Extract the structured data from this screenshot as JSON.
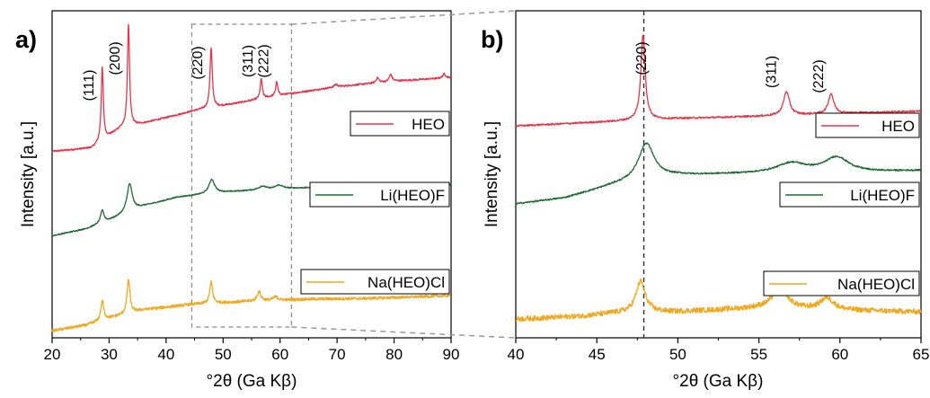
{
  "chart_data": [
    {
      "panel_label": "a)",
      "type": "line",
      "xlabel": "°2θ (Ga Kβ)",
      "ylabel": "Intensity [a.u.]",
      "xlim": [
        20,
        90
      ],
      "xticks": [
        20,
        30,
        40,
        50,
        60,
        70,
        80,
        90
      ],
      "zoom_box": [
        44.5,
        62
      ],
      "peak_labels": [
        {
          "text": "(111)",
          "x": 28.8
        },
        {
          "text": "(200)",
          "x": 33.4
        },
        {
          "text": "(220)",
          "x": 47.9
        },
        {
          "text": "(311)",
          "x": 56.7
        },
        {
          "text": "(222)",
          "x": 59.5
        }
      ],
      "series": [
        {
          "name": "HEO",
          "color": "#e8344a",
          "offset": 2.55,
          "noise": 0.012,
          "baseline": [
            [
              20,
              0.0
            ],
            [
              27,
              0.05
            ],
            [
              32,
              0.33
            ],
            [
              36,
              0.4
            ],
            [
              45,
              0.58
            ],
            [
              52,
              0.68
            ],
            [
              60,
              0.8
            ],
            [
              70,
              0.92
            ],
            [
              80,
              1.0
            ],
            [
              90,
              1.05
            ]
          ],
          "peaks": [
            [
              28.8,
              1.05,
              0.22
            ],
            [
              33.4,
              1.45,
              0.22
            ],
            [
              47.9,
              0.85,
              0.24
            ],
            [
              56.7,
              0.28,
              0.22
            ],
            [
              59.4,
              0.2,
              0.22
            ],
            [
              69.8,
              0.04,
              0.3
            ],
            [
              77.1,
              0.07,
              0.3
            ],
            [
              79.4,
              0.1,
              0.3
            ],
            [
              88.8,
              0.06,
              0.3
            ]
          ]
        },
        {
          "name": "Li(HEO)F",
          "color": "#1e6b35",
          "offset": 1.35,
          "noise": 0.008,
          "baseline": [
            [
              20,
              0.0
            ],
            [
              26,
              0.1
            ],
            [
              30,
              0.22
            ],
            [
              36,
              0.42
            ],
            [
              42,
              0.55
            ],
            [
              50,
              0.62
            ],
            [
              60,
              0.67
            ],
            [
              70,
              0.7
            ],
            [
              80,
              0.72
            ],
            [
              90,
              0.73
            ]
          ],
          "peaks": [
            [
              28.8,
              0.18,
              0.35
            ],
            [
              33.6,
              0.4,
              0.55
            ],
            [
              48.0,
              0.2,
              0.6
            ],
            [
              56.9,
              0.05,
              0.8
            ],
            [
              59.8,
              0.05,
              0.8
            ],
            [
              80.0,
              0.03,
              1.2
            ]
          ]
        },
        {
          "name": "Na(HEO)Cl",
          "color": "#f2a81d",
          "offset": 0.0,
          "noise": 0.02,
          "baseline": [
            [
              20,
              0.0
            ],
            [
              26,
              0.08
            ],
            [
              30,
              0.18
            ],
            [
              36,
              0.3
            ],
            [
              45,
              0.38
            ],
            [
              55,
              0.42
            ],
            [
              65,
              0.45
            ],
            [
              75,
              0.46
            ],
            [
              90,
              0.5
            ]
          ],
          "peaks": [
            [
              28.8,
              0.28,
              0.3
            ],
            [
              33.4,
              0.48,
              0.3
            ],
            [
              47.9,
              0.3,
              0.3
            ],
            [
              56.3,
              0.13,
              0.4
            ],
            [
              59.2,
              0.05,
              0.5
            ]
          ]
        }
      ]
    },
    {
      "panel_label": "b)",
      "type": "line",
      "xlabel": "°2θ (Ga Kβ)",
      "ylabel": "Intensity [a.u.]",
      "xlim": [
        40,
        65
      ],
      "xticks": [
        40,
        45,
        50,
        55,
        60,
        65
      ],
      "reference_line_x": 47.9,
      "peak_labels": [
        {
          "text": "(220)",
          "x": 48.6
        },
        {
          "text": "(311)",
          "x": 56.6
        },
        {
          "text": "(222)",
          "x": 59.5
        }
      ],
      "series": [
        {
          "name": "HEO",
          "color": "#e8344a",
          "offset": 2.6,
          "noise": 0.012,
          "baseline": [
            [
              40,
              0.0
            ],
            [
              45,
              0.05
            ],
            [
              50,
              0.1
            ],
            [
              55,
              0.13
            ],
            [
              60,
              0.17
            ],
            [
              65,
              0.2
            ]
          ],
          "peaks": [
            [
              47.85,
              1.15,
              0.16
            ],
            [
              56.7,
              0.32,
              0.22
            ],
            [
              59.45,
              0.27,
              0.2
            ]
          ]
        },
        {
          "name": "Li(HEO)F",
          "color": "#1e6b35",
          "offset": 1.55,
          "noise": 0.01,
          "baseline": [
            [
              40,
              0.0
            ],
            [
              43,
              0.08
            ],
            [
              46,
              0.25
            ],
            [
              50,
              0.38
            ],
            [
              53,
              0.4
            ],
            [
              58,
              0.42
            ],
            [
              62,
              0.43
            ],
            [
              65,
              0.45
            ]
          ],
          "peaks": [
            [
              48.05,
              0.5,
              0.6
            ],
            [
              57.0,
              0.13,
              1.1
            ],
            [
              59.8,
              0.2,
              0.9
            ]
          ]
        },
        {
          "name": "Na(HEO)Cl",
          "color": "#f2a81d",
          "offset": 0.0,
          "noise": 0.035,
          "baseline": [
            [
              40,
              0.0
            ],
            [
              44,
              0.04
            ],
            [
              46,
              0.08
            ],
            [
              50,
              0.1
            ],
            [
              55,
              0.15
            ],
            [
              60,
              0.12
            ],
            [
              65,
              0.1
            ]
          ],
          "peaks": [
            [
              47.7,
              0.42,
              0.35
            ],
            [
              56.3,
              0.28,
              0.55
            ],
            [
              59.2,
              0.16,
              0.5
            ]
          ]
        }
      ]
    }
  ]
}
